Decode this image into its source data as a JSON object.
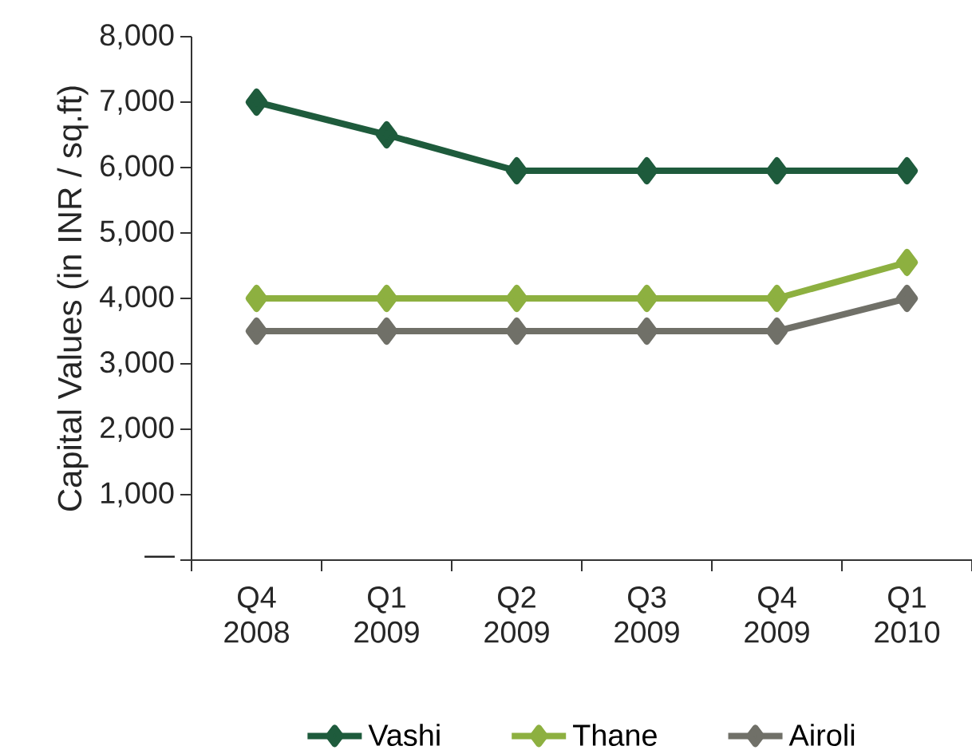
{
  "chart_data": {
    "type": "line",
    "ylabel": "Capital Values (in INR / sq.ft)",
    "categories": [
      "Q4 2008",
      "Q1 2009",
      "Q2 2009",
      "Q3 2009",
      "Q4 2009",
      "Q1 2010"
    ],
    "series": [
      {
        "name": "Vashi",
        "color": "#1e5b3c",
        "values": [
          7000,
          6500,
          5950,
          5950,
          5950,
          5950
        ]
      },
      {
        "name": "Thane",
        "color": "#8db040",
        "values": [
          4000,
          4000,
          4000,
          4000,
          4000,
          4550
        ]
      },
      {
        "name": "Airoli",
        "color": "#707068",
        "values": [
          3500,
          3500,
          3500,
          3500,
          3500,
          4000
        ]
      }
    ],
    "ylim": [
      0,
      8000
    ],
    "yticks": [
      {
        "value": 0,
        "label": "—"
      },
      {
        "value": 1000,
        "label": "1,000"
      },
      {
        "value": 2000,
        "label": "2,000"
      },
      {
        "value": 3000,
        "label": "3,000"
      },
      {
        "value": 4000,
        "label": "4,000"
      },
      {
        "value": 5000,
        "label": "5,000"
      },
      {
        "value": 6000,
        "label": "6,000"
      },
      {
        "value": 7000,
        "label": "7,000"
      },
      {
        "value": 8000,
        "label": "8,000"
      }
    ],
    "marker": "diamond",
    "line_style": "solid",
    "grid": false,
    "legend": "bottom"
  }
}
